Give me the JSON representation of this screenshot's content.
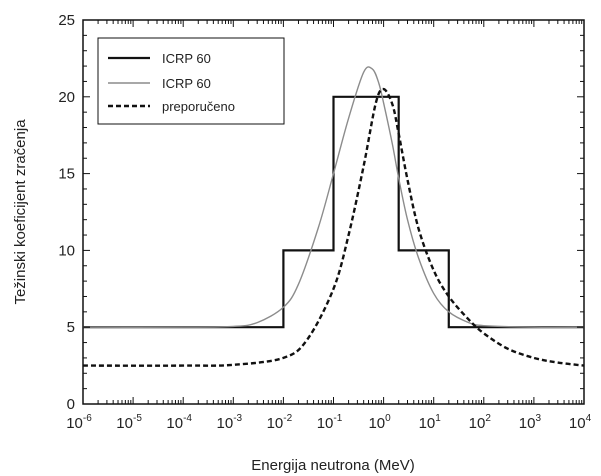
{
  "chart_data": {
    "type": "line",
    "title": "",
    "xlabel": "Energija neutrona (MeV)",
    "ylabel": "Težinski koeficijent zračenja",
    "xscale": "log",
    "xlim": [
      1e-06,
      10000
    ],
    "ylim": [
      0,
      25
    ],
    "x_ticks": [
      {
        "base": "10",
        "exp": "-6",
        "value": 1e-06
      },
      {
        "base": "10",
        "exp": "-5",
        "value": 1e-05
      },
      {
        "base": "10",
        "exp": "-4",
        "value": 0.0001
      },
      {
        "base": "10",
        "exp": "-3",
        "value": 0.001
      },
      {
        "base": "10",
        "exp": "-2",
        "value": 0.01
      },
      {
        "base": "10",
        "exp": "-1",
        "value": 0.1
      },
      {
        "base": "10",
        "exp": "0",
        "value": 1
      },
      {
        "base": "10",
        "exp": "1",
        "value": 10
      },
      {
        "base": "10",
        "exp": "2",
        "value": 100
      },
      {
        "base": "10",
        "exp": "3",
        "value": 1000
      },
      {
        "base": "10",
        "exp": "4",
        "value": 10000
      }
    ],
    "y_ticks": [
      {
        "label": "0",
        "value": 0
      },
      {
        "label": "5",
        "value": 5
      },
      {
        "label": "10",
        "value": 10
      },
      {
        "label": "15",
        "value": 15
      },
      {
        "label": "20",
        "value": 20
      },
      {
        "label": "25",
        "value": 25
      }
    ],
    "grid": false,
    "legend_position": "top-left",
    "series": [
      {
        "name": "ICRP 60",
        "style": "step",
        "color": "#111111",
        "x": [
          1e-06,
          0.01,
          0.01,
          0.1,
          0.1,
          2,
          2,
          20,
          20,
          10000
        ],
        "y": [
          5,
          5,
          10,
          10,
          20,
          20,
          10,
          10,
          5,
          5
        ]
      },
      {
        "name": "ICRP 60",
        "style": "smooth",
        "color": "#8c8c8c",
        "x": [
          1e-06,
          0.0001,
          0.001,
          0.003,
          0.01,
          0.02,
          0.05,
          0.1,
          0.2,
          0.4,
          0.6,
          0.8,
          1,
          1.5,
          2,
          3,
          5,
          10,
          20,
          50,
          100,
          1000,
          10000
        ],
        "y": [
          5,
          5,
          5.05,
          5.3,
          6.3,
          7.8,
          11.5,
          15.0,
          18.6,
          21.6,
          21.8,
          20.9,
          19.6,
          16.9,
          14.7,
          12.0,
          9.5,
          7.2,
          6.0,
          5.3,
          5.1,
          5.0,
          5.0
        ]
      },
      {
        "name": "preporučeno",
        "style": "dashed",
        "color": "#111111",
        "x": [
          1e-06,
          0.0001,
          0.001,
          0.01,
          0.03,
          0.1,
          0.2,
          0.4,
          0.7,
          1,
          1.5,
          2,
          3,
          5,
          10,
          20,
          50,
          100,
          300,
          1000,
          3000,
          10000
        ],
        "y": [
          2.5,
          2.5,
          2.55,
          3.0,
          4.2,
          7.5,
          11.0,
          15.5,
          19.6,
          20.5,
          19.5,
          17.6,
          14.6,
          11.4,
          8.7,
          7.0,
          5.5,
          4.6,
          3.6,
          3.0,
          2.7,
          2.5
        ]
      }
    ]
  }
}
